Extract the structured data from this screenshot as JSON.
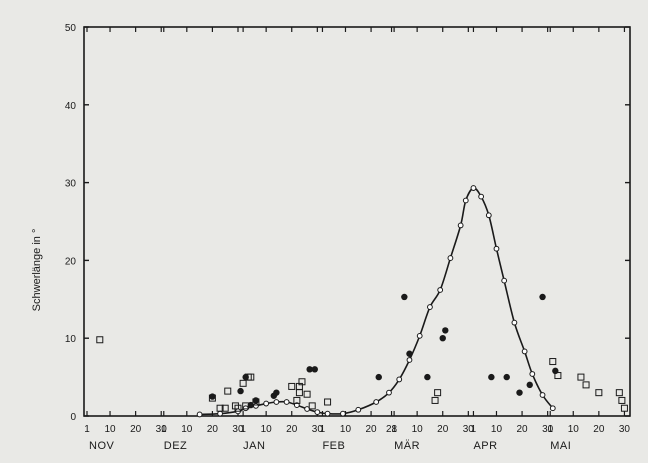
{
  "chart_data": {
    "type": "scatter",
    "title": "",
    "xlabel": "",
    "ylabel": "Schwerlänge in °",
    "ylim": [
      0,
      50
    ],
    "yticks": [
      0,
      10,
      20,
      30,
      40,
      50
    ],
    "x_unit": "day from Nov 1",
    "xlim": [
      0,
      211
    ],
    "x_tick_labels": [
      {
        "x": 0,
        "label": "1"
      },
      {
        "x": 9,
        "label": "10"
      },
      {
        "x": 19,
        "label": "20"
      },
      {
        "x": 29,
        "label": "30"
      },
      {
        "x": 30,
        "label": "1"
      },
      {
        "x": 39,
        "label": "10"
      },
      {
        "x": 49,
        "label": "20"
      },
      {
        "x": 59,
        "label": "30"
      },
      {
        "x": 61,
        "label": "1"
      },
      {
        "x": 70,
        "label": "10"
      },
      {
        "x": 80,
        "label": "20"
      },
      {
        "x": 90,
        "label": "30"
      },
      {
        "x": 92,
        "label": "1"
      },
      {
        "x": 101,
        "label": "10"
      },
      {
        "x": 111,
        "label": "20"
      },
      {
        "x": 119,
        "label": "28"
      },
      {
        "x": 120,
        "label": "1"
      },
      {
        "x": 129,
        "label": "10"
      },
      {
        "x": 139,
        "label": "20"
      },
      {
        "x": 149,
        "label": "30"
      },
      {
        "x": 151,
        "label": "1"
      },
      {
        "x": 160,
        "label": "10"
      },
      {
        "x": 170,
        "label": "20"
      },
      {
        "x": 180,
        "label": "30"
      },
      {
        "x": 181,
        "label": "1"
      },
      {
        "x": 190,
        "label": "10"
      },
      {
        "x": 200,
        "label": "20"
      },
      {
        "x": 210,
        "label": "30"
      }
    ],
    "months": [
      {
        "x": 0,
        "label": "NOV"
      },
      {
        "x": 30,
        "label": "DEZ"
      },
      {
        "x": 61,
        "label": "JAN"
      },
      {
        "x": 92,
        "label": "FEB"
      },
      {
        "x": 120,
        "label": "MÄR"
      },
      {
        "x": 151,
        "label": "APR"
      },
      {
        "x": 181,
        "label": "MAI"
      }
    ],
    "series": [
      {
        "marker": "open-circle-line",
        "points": [
          [
            44,
            0.2
          ],
          [
            52,
            0.3
          ],
          [
            59,
            0.6
          ],
          [
            62,
            1.0
          ],
          [
            66,
            1.3
          ],
          [
            70,
            1.6
          ],
          [
            74,
            1.8
          ],
          [
            78,
            1.8
          ],
          [
            82,
            1.4
          ],
          [
            86,
            0.9
          ],
          [
            90,
            0.5
          ],
          [
            94,
            0.3
          ],
          [
            100,
            0.3
          ],
          [
            106,
            0.8
          ],
          [
            113,
            1.8
          ],
          [
            118,
            3.0
          ],
          [
            122,
            4.7
          ],
          [
            126,
            7.2
          ],
          [
            130,
            10.3
          ],
          [
            134,
            14.0
          ],
          [
            138,
            16.2
          ],
          [
            142,
            20.3
          ],
          [
            146,
            24.5
          ],
          [
            148,
            27.7
          ],
          [
            151,
            29.3
          ],
          [
            154,
            28.2
          ],
          [
            157,
            25.8
          ],
          [
            160,
            21.5
          ],
          [
            163,
            17.4
          ],
          [
            167,
            12.0
          ],
          [
            171,
            8.3
          ],
          [
            174,
            5.4
          ],
          [
            178,
            2.7
          ],
          [
            182,
            1.0
          ]
        ]
      },
      {
        "marker": "filled-circle",
        "points": [
          [
            49,
            2.5
          ],
          [
            60,
            3.2
          ],
          [
            62,
            5.0
          ],
          [
            64,
            1.4
          ],
          [
            66,
            2.0
          ],
          [
            73,
            2.6
          ],
          [
            74,
            3.0
          ],
          [
            87,
            6.0
          ],
          [
            89,
            6.0
          ],
          [
            114,
            5.0
          ],
          [
            124,
            15.3
          ],
          [
            126,
            8.0
          ],
          [
            133,
            5.0
          ],
          [
            139,
            10.0
          ],
          [
            140,
            11.0
          ],
          [
            158,
            5.0
          ],
          [
            164,
            5.0
          ],
          [
            169,
            3.0
          ],
          [
            173,
            4.0
          ],
          [
            178,
            15.3
          ],
          [
            183,
            5.8
          ]
        ]
      },
      {
        "marker": "open-square",
        "points": [
          [
            5,
            9.8
          ],
          [
            49,
            2.3
          ],
          [
            52,
            1.0
          ],
          [
            54,
            1.0
          ],
          [
            55,
            3.2
          ],
          [
            58,
            1.3
          ],
          [
            59,
            1.0
          ],
          [
            61,
            4.2
          ],
          [
            62,
            1.3
          ],
          [
            63,
            5.0
          ],
          [
            64,
            5.0
          ],
          [
            66,
            1.8
          ],
          [
            80,
            3.8
          ],
          [
            82,
            2.0
          ],
          [
            83,
            3.0
          ],
          [
            83,
            3.8
          ],
          [
            84,
            4.4
          ],
          [
            86,
            2.8
          ],
          [
            88,
            1.3
          ],
          [
            94,
            1.8
          ],
          [
            136,
            2.0
          ],
          [
            137,
            3.0
          ],
          [
            182,
            7.0
          ],
          [
            184,
            5.2
          ],
          [
            193,
            5.0
          ],
          [
            195,
            4.0
          ],
          [
            200,
            3.0
          ],
          [
            208,
            3.0
          ],
          [
            209,
            2.0
          ],
          [
            210,
            1.0
          ]
        ]
      }
    ]
  }
}
